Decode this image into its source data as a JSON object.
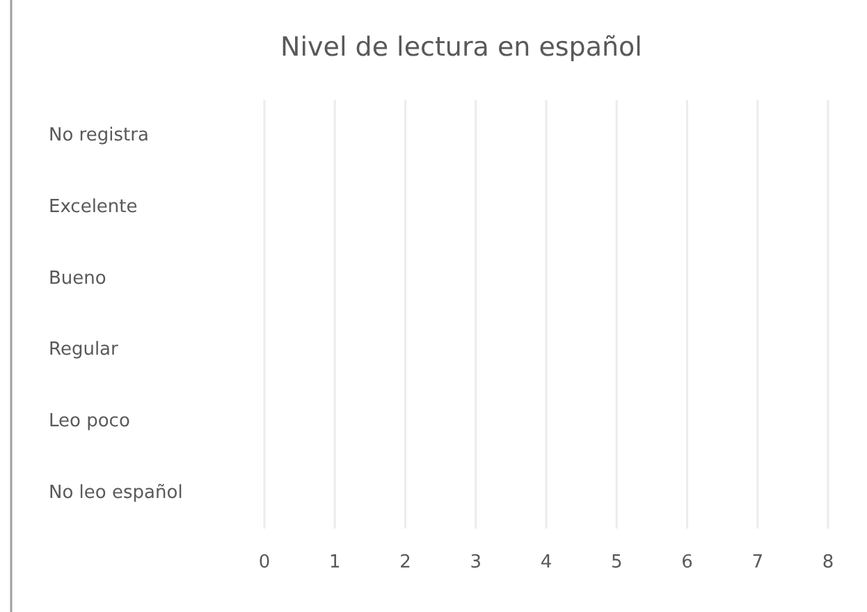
{
  "chart_data": {
    "type": "bar",
    "orientation": "horizontal",
    "title": "Nivel de lectura en español",
    "categories": [
      "No registra",
      "Excelente",
      "Bueno",
      "Regular",
      "Leo poco",
      "No leo español"
    ],
    "values": [
      0,
      0,
      0,
      0,
      0,
      0
    ],
    "xlim": [
      0,
      8
    ],
    "xticks": [
      0,
      1,
      2,
      3,
      4,
      5,
      6,
      7,
      8
    ],
    "grid": "x"
  }
}
